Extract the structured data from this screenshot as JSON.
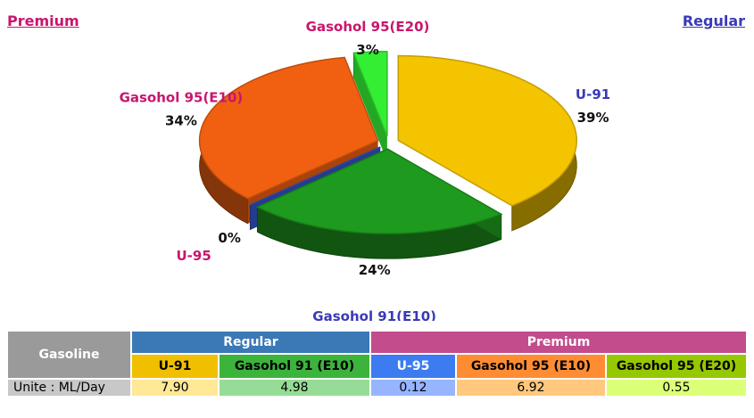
{
  "header": {
    "left_link": "Premium",
    "right_link": "Regular"
  },
  "chart_data": {
    "type": "pie3d",
    "categories": [
      "U-91",
      "Gasohol 91(E10)",
      "U-95",
      "Gasohol 95(E10)",
      "Gasohol 95(E20)"
    ],
    "values": [
      39,
      24,
      0,
      34,
      3
    ],
    "value_labels": [
      "39%",
      "24%",
      "0%",
      "34%",
      "3%"
    ],
    "colors": [
      "#f5c400",
      "#1e9a1e",
      "#3355cc",
      "#f06010",
      "#33ee33"
    ],
    "label_colors": [
      "#3a3ab8",
      "#3a3ab8",
      "#c8166e",
      "#c8166e",
      "#c8166e"
    ]
  },
  "table": {
    "corner": "Gasoline",
    "groups": [
      {
        "name": "Regular",
        "columns": [
          "U-91",
          "Gasohol 91 (E10)"
        ]
      },
      {
        "name": "Premium",
        "columns": [
          "U-95",
          "Gasohol 95 (E10)",
          "Gasohol 95 (E20)"
        ]
      }
    ],
    "rows": [
      {
        "label": "Unite : ML/Day",
        "values": [
          "7.90",
          "4.98",
          "0.12",
          "6.92",
          "0.55"
        ]
      }
    ]
  }
}
